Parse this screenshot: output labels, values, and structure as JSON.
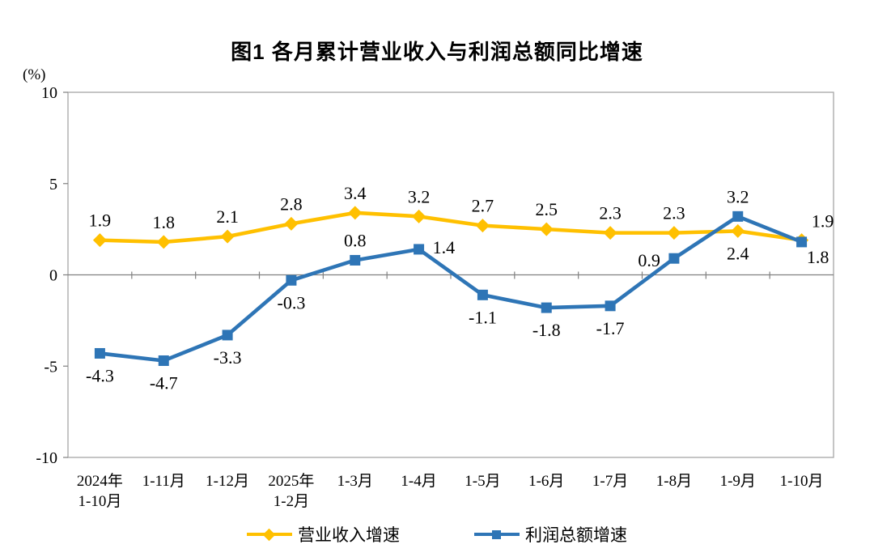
{
  "chart_data": {
    "type": "line",
    "title": "图1 各月累计营业收入与利润总额同比增速",
    "unit_label": "(%)",
    "categories": [
      "2024年\n1-10月",
      "1-11月",
      "1-12月",
      "2025年\n1-2月",
      "1-3月",
      "1-4月",
      "1-5月",
      "1-6月",
      "1-7月",
      "1-8月",
      "1-9月",
      "1-10月"
    ],
    "y_ticks": [
      10,
      5,
      0,
      -5,
      -10
    ],
    "ylim": [
      -10,
      10
    ],
    "grid": "zero-axis-only",
    "legend_position": "bottom",
    "axis_color": "#a6a6a6",
    "zero_axis_color": "#808080",
    "series": [
      {
        "name": "营业收入增速",
        "color": "#FFC000",
        "marker": "diamond",
        "values": [
          1.9,
          1.8,
          2.1,
          2.8,
          3.4,
          3.2,
          2.7,
          2.5,
          2.3,
          2.3,
          2.4,
          1.9
        ],
        "label_placement": [
          "above",
          "above",
          "above",
          "above",
          "above",
          "above",
          "above",
          "above",
          "above",
          "above",
          "below",
          "above-right"
        ]
      },
      {
        "name": "利润总额增速",
        "color": "#2E75B6",
        "marker": "square",
        "values": [
          -4.3,
          -4.7,
          -3.3,
          -0.3,
          0.8,
          1.4,
          -1.1,
          -1.8,
          -1.7,
          0.9,
          3.2,
          1.8
        ],
        "label_placement": [
          "below",
          "below",
          "below",
          "below",
          "above",
          "right",
          "below",
          "below",
          "below",
          "left",
          "above",
          "below-right"
        ]
      }
    ]
  }
}
